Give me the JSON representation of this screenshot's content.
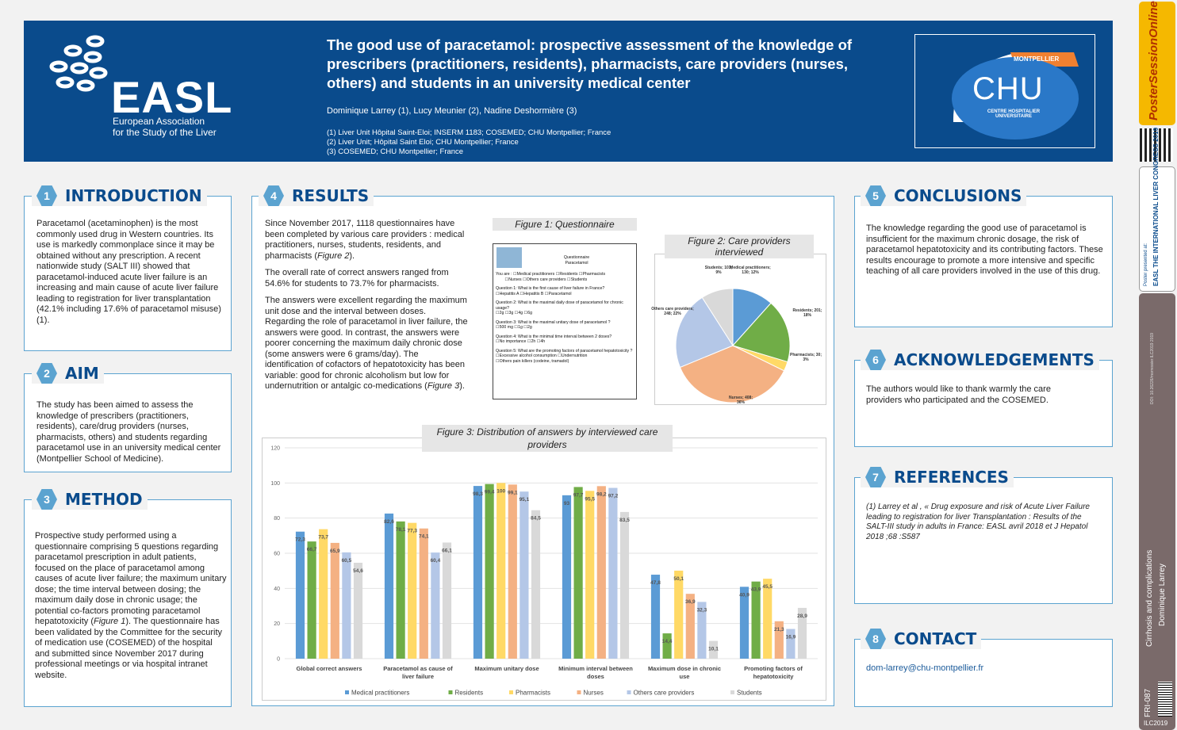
{
  "header": {
    "logo_text": "EASL",
    "logo_sub1": "European Association",
    "logo_sub2": "for the Study of the Liver",
    "title": "The good use of paracetamol: prospective assessment of the knowledge of prescribers (practitioners, residents), pharmacists, care providers (nurses, others) and students in an university medical center",
    "authors": "Dominique Larrey (1), Lucy Meunier (2), Nadine Deshormière (3)",
    "affiliations": [
      "(1) Liver Unit Hôpital Saint-Eloi; INSERM 1183; COSEMED; CHU Montpellier; France",
      "(2) Liver Unit; Hôpital Saint Eloi; CHU Montpellier; France",
      "(3) COSEMED; CHU Montpellier; France"
    ],
    "chu": {
      "city": "MONTPELLIER",
      "name": "CHU",
      "sub1": "CENTRE HOSPITALIER",
      "sub2": "UNIVERSITAIRE"
    }
  },
  "sidebar": {
    "brand": "PosterSessionOnline",
    "presented": "Poster presented at:",
    "congress": "EASL THE INTERNATIONAL LIVER CONGRESS 2019",
    "doi": "DOI: 10.26226/morressier.ILC2019 2019",
    "topic": "Cirrhosis and complications",
    "author": "Dominique Larrey",
    "code": "FRI-087",
    "event": "ILC2019"
  },
  "sections": {
    "introduction": {
      "num": "1",
      "title": "INTRODUCTION",
      "text": "Paracetamol (acetaminophen) is the most commonly used drug in Western countries. Its use is markedly commonplace since it may be obtained without any prescription. A recent nationwide study (SALT III) showed that paracetamol-induced acute liver failure is an increasing and main cause of acute liver failure leading to registration for liver transplantation (42.1% including 17.6% of paracetamol misuse) (1)."
    },
    "aim": {
      "num": "2",
      "title": "AIM",
      "text": "The study has been aimed to assess the knowledge of prescribers (practitioners, residents), care/drug providers (nurses, pharmacists, others) and students regarding paracetamol use in an university medical center (Montpellier School of Medicine)."
    },
    "method": {
      "num": "3",
      "title": "METHOD",
      "text_a": "Prospective study performed using a questionnaire comprising 5 questions regarding paracetamol prescription in adult patients, focused on the place of paracetamol among causes of acute liver failure; the maximum unitary dose; the time interval between dosing; the maximum daily dose in chronic usage; the potential co-factors promoting paracetamol hepatotoxicity (",
      "text_fig": "Figure 1",
      "text_b": "). The questionnaire has been validated by the Committee for the security of medication use (COSEMED) of the hospital and submitted since November 2017 during professional meetings or via hospital intranet website."
    },
    "results": {
      "num": "4",
      "title": "RESULTS",
      "p1a": "Since November 2017, 1118 questionnaires have been completed by various care providers : medical practitioners, nurses, students, residents, and pharmacists (",
      "p1fig": "Figure 2",
      "p1b": ").",
      "p2": "The overall rate of correct answers ranged from 54.6% for students to 73.7% for pharmacists.",
      "p3a": "The answers were excellent regarding the maximum unit dose and the interval between doses. Regarding the role of paracetamol in liver failure, the answers were good. In contrast, the answers were poorer concerning the maximum daily chronic dose (some answers were 6 grams/day). The identification of cofactors of hepatotoxicity has been variable: good for chronic alcoholism but low for undernutrition or antalgic co-medications (",
      "p3fig": "Figure 3",
      "p3b": ")."
    },
    "conclusions": {
      "num": "5",
      "title": "CONCLUSIONS",
      "text": "The knowledge regarding the good use of paracetamol is insufficient for the maximum chronic dosage, the risk of paracetamol hepatotoxicity and its contributing factors. These results encourage to promote a more intensive and specific teaching of all care providers involved in the use of this drug."
    },
    "acknowledgements": {
      "num": "6",
      "title": "ACKNOWLEDGEMENTS",
      "text": "The authors would like to thank warmly the care providers who participated and the COSEMED."
    },
    "references": {
      "num": "7",
      "title": "REFERENCES",
      "text": "(1) Larrey et al , « Drug exposure and risk of Acute Liver Failure leading to registration for liver Transplantation : Results of the SALT-III study in adults in France: EASL avril 2018 et J Hepatol 2018 ;68 :S587"
    },
    "contact": {
      "num": "8",
      "title": "CONTACT",
      "email": "dom-larrey@chu-montpellier.fr"
    }
  },
  "figure1": {
    "caption": "Figure 1: Questionnaire",
    "head1": "Questionnaire",
    "head2": "Paracetamol",
    "you_are": "You are :",
    "roles": [
      "Medical practitioners",
      "Residents",
      "Pharmacists",
      "Nurses",
      "Others care providers",
      "Students"
    ],
    "q1": "Question 1: What is the first cause of liver failure in France?",
    "q1o": [
      "Hepatitis A",
      "Hepatitis B",
      "Paracetamol"
    ],
    "q2": "Question 2: What is the maximal daily dose of paracetamol for chronic usage?",
    "q2o": [
      "2g",
      "3g",
      "4g",
      "6g"
    ],
    "q3": "Question 3: What is the maximal unitary dose of paracetamol ?",
    "q3o": [
      "500 mg",
      "1g",
      "2g"
    ],
    "q4": "Question 4: What is the minimal time interval between 2 doses?",
    "q4o": [
      "No importance",
      "2h",
      "4h"
    ],
    "q5": "Question 5: What are the promoting factors of paracetamol hepatotoxicity ?",
    "q5o": [
      "Excessive alcohol consumption",
      "Undernutrition",
      "Others pain killers (codeine, tramadol)"
    ]
  },
  "chart_data": [
    {
      "type": "pie",
      "title": "Figure 2: Care providers interviewed",
      "slices": [
        {
          "label": "Medical practitioners; 130; 12%",
          "value": 130,
          "color": "#5b9bd5"
        },
        {
          "label": "Residents; 201; 18%",
          "value": 201,
          "color": "#70ad47"
        },
        {
          "label": "Pharmacists; 30; 3%",
          "value": 30,
          "color": "#ffd966"
        },
        {
          "label": "Nurses; 408; 36%",
          "value": 408,
          "color": "#f4b183"
        },
        {
          "label": "Others care providers; 248; 22%",
          "value": 248,
          "color": "#b4c7e7"
        },
        {
          "label": "Students; 101; 9%",
          "value": 101,
          "color": "#d9d9d9"
        }
      ]
    },
    {
      "type": "bar",
      "title": "Figure 3: Distribution of answers by interviewed care providers",
      "ylim": [
        0,
        120
      ],
      "yticks": [
        0,
        20,
        40,
        60,
        80,
        100,
        120
      ],
      "categories": [
        "Global correct answers",
        "Paracetamol as cause of liver failure",
        "Maximum unitary dose",
        "Minimum interval between doses",
        "Maximum dose in chronic use",
        "Promoting factors of hepatotoxicity"
      ],
      "series": [
        {
          "name": "Medical practitioners",
          "color": "#5b9bd5",
          "values": [
            72.3,
            82.6,
            98.3,
            93,
            47.8,
            40.9
          ]
        },
        {
          "name": "Residents",
          "color": "#70ad47",
          "values": [
            66.7,
            78.1,
            99.4,
            97.7,
            14.4,
            43.9
          ]
        },
        {
          "name": "Pharmacists",
          "color": "#ffd966",
          "values": [
            73.7,
            77.3,
            100,
            95.5,
            50.1,
            45.5
          ]
        },
        {
          "name": "Nurses",
          "color": "#f4b183",
          "values": [
            65.9,
            74.1,
            99.1,
            98.2,
            36.9,
            21.3
          ]
        },
        {
          "name": "Others care providers",
          "color": "#b4c7e7",
          "values": [
            60.5,
            60.4,
            95.1,
            97.2,
            32.3,
            16.9
          ]
        },
        {
          "name": "Students",
          "color": "#d9d9d9",
          "values": [
            54.6,
            66.1,
            84.5,
            83.5,
            10.1,
            28.9
          ]
        }
      ]
    }
  ]
}
